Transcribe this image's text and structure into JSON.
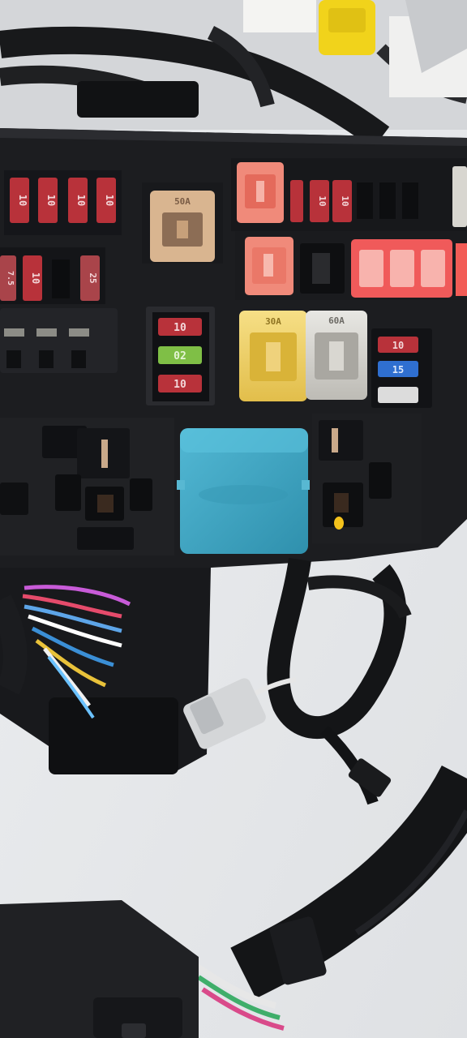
{
  "scene": {
    "title": "Automotive fuse and relay box with wiring harness",
    "colors": {
      "background": "#e6e8ea",
      "housing": "#1c1d20",
      "harness": "#141517",
      "fuse_red": "#b8323a",
      "fuse_green": "#7fbf46",
      "fuse_blue": "#2f6fd0",
      "fuse_clear": "#dcdcdc",
      "maxi_yellow": "#f0d46a",
      "maxi_clear": "#d8d6d0",
      "maxi_beige": "#d9b590",
      "pink_fuse": "#f08a7a",
      "red_fuse": "#f05a5a",
      "relay_blue": "#3fa6c4",
      "connector_yellow": "#f1d31b",
      "connector_grey": "#d4d6d8"
    }
  },
  "fuse_labels": {
    "top_row": [
      "10",
      "10",
      "10",
      "10"
    ],
    "top_right_row": [
      "10",
      "10",
      "10"
    ],
    "left_row": [
      "7.5",
      "10",
      "25"
    ],
    "center_column": [
      "10",
      "02",
      "10"
    ],
    "right_column": [
      "10",
      "15"
    ],
    "maxi_fuses": [
      "30A",
      "50A",
      "60A"
    ]
  }
}
